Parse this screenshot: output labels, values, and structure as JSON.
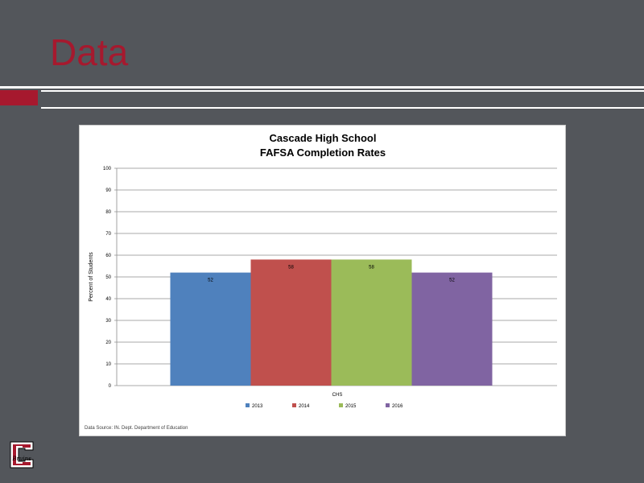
{
  "slide": {
    "title": "Data"
  },
  "colors": {
    "title": "#a6192e",
    "background": "#53565b",
    "accent_bar": "#a6192e"
  },
  "logo": {
    "icon": "school-c-logo-icon",
    "text": "Bruins"
  },
  "chart_data": {
    "type": "bar",
    "title": "Cascade High School",
    "subtitle": "FAFSA Completion Rates",
    "xlabel": "CHS",
    "ylabel": "Percent of Students",
    "ylim": [
      0,
      100
    ],
    "yticks": [
      0,
      10,
      20,
      30,
      40,
      50,
      60,
      70,
      80,
      90,
      100
    ],
    "categories": [
      "CHS"
    ],
    "series": [
      {
        "name": "2013",
        "values": [
          52
        ],
        "color": "#4f81bd"
      },
      {
        "name": "2014",
        "values": [
          58
        ],
        "color": "#c0504d"
      },
      {
        "name": "2015",
        "values": [
          58
        ],
        "color": "#9bbb59"
      },
      {
        "name": "2016",
        "values": [
          52
        ],
        "color": "#8064a2"
      }
    ],
    "data_labels": true,
    "grid": true,
    "legend": "bottom",
    "source_note": "Data Source: IN. Dept. Department of Education"
  }
}
